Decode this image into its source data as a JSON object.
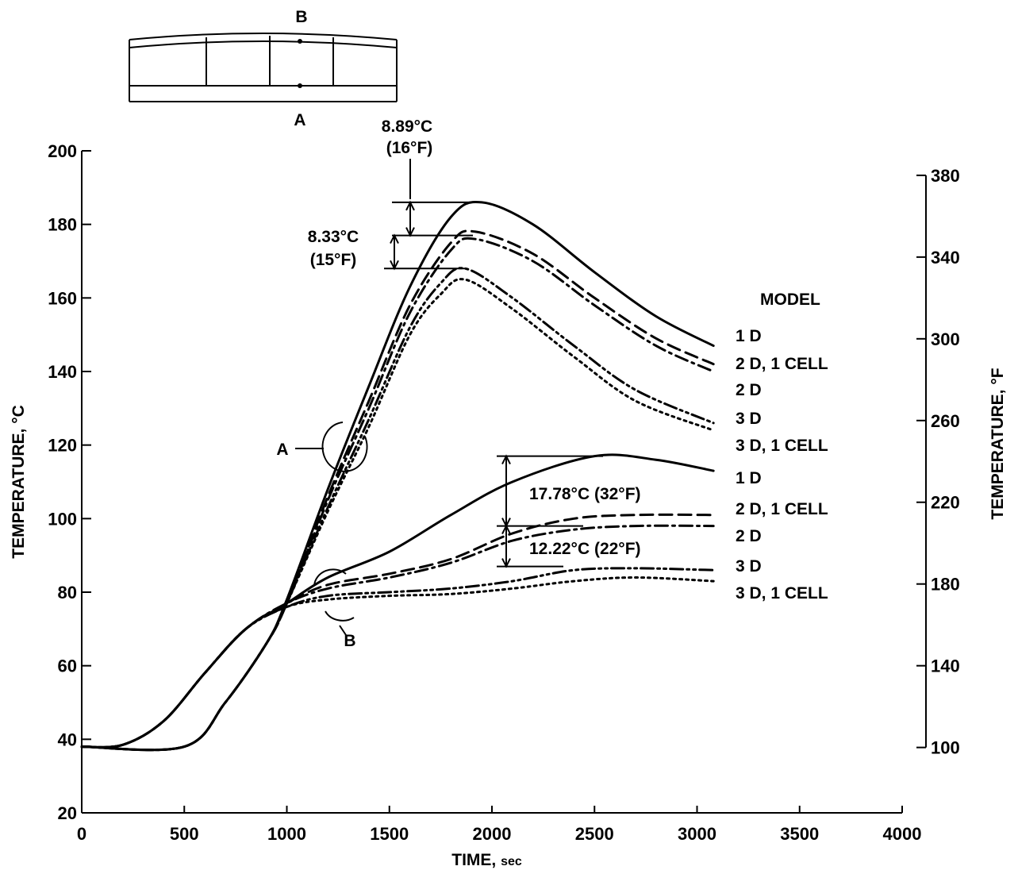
{
  "chart_data": {
    "type": "line",
    "x_axis": {
      "label_main": "TIME,",
      "label_unit": "sec",
      "range": [
        0,
        4000
      ],
      "ticks": [
        0,
        500,
        1000,
        1500,
        2000,
        2500,
        3000,
        3500,
        4000
      ]
    },
    "y_axis_left": {
      "label": "TEMPERATURE, °C",
      "range": [
        20,
        200
      ],
      "ticks": [
        20,
        40,
        60,
        80,
        100,
        120,
        140,
        160,
        180,
        200
      ]
    },
    "y_axis_right": {
      "label": "TEMPERATURE, °F",
      "ticks": [
        100,
        140,
        180,
        220,
        260,
        300,
        340,
        380
      ]
    },
    "legend_header": "MODEL",
    "location_A": {
      "label": "A",
      "series": [
        {
          "name": "1 D",
          "style": "solid",
          "x": [
            0,
            500,
            700,
            900,
            1000,
            1200,
            1400,
            1600,
            1800,
            1950,
            2200,
            2500,
            2800,
            3080
          ],
          "y": [
            38,
            38,
            50,
            66,
            78,
            108,
            136,
            163,
            182,
            186,
            180,
            167,
            155,
            147
          ]
        },
        {
          "name": "2 D, 1 CELL",
          "style": "dashed",
          "x": [
            0,
            500,
            700,
            900,
            1000,
            1200,
            1400,
            1600,
            1800,
            1920,
            2200,
            2500,
            2800,
            3080
          ],
          "y": [
            38,
            38,
            50,
            66,
            77,
            106,
            132,
            158,
            175,
            178,
            172,
            160,
            149,
            142
          ]
        },
        {
          "name": "2 D",
          "style": "dash-dot",
          "x": [
            0,
            500,
            700,
            900,
            1000,
            1200,
            1400,
            1600,
            1800,
            1920,
            2200,
            2500,
            2800,
            3080
          ],
          "y": [
            38,
            38,
            50,
            66,
            77,
            105,
            130,
            156,
            173,
            176,
            170,
            158,
            147,
            140
          ]
        },
        {
          "name": "3 D",
          "style": "dash-dot-dot",
          "x": [
            0,
            500,
            700,
            900,
            1000,
            1200,
            1400,
            1600,
            1750,
            1870,
            2100,
            2400,
            2700,
            3080
          ],
          "y": [
            38,
            38,
            50,
            66,
            77,
            103,
            127,
            152,
            164,
            168,
            160,
            147,
            135,
            126
          ]
        },
        {
          "name": "3 D, 1 CELL",
          "style": "dotted",
          "x": [
            0,
            500,
            700,
            900,
            1000,
            1200,
            1400,
            1600,
            1750,
            1870,
            2100,
            2400,
            2700,
            3080
          ],
          "y": [
            38,
            38,
            50,
            66,
            77,
            102,
            125,
            150,
            161,
            165,
            157,
            144,
            132,
            124
          ]
        }
      ]
    },
    "location_B": {
      "label": "B",
      "series": [
        {
          "name": "1 D",
          "style": "solid",
          "x": [
            0,
            200,
            400,
            600,
            800,
            1000,
            1200,
            1500,
            1800,
            2100,
            2500,
            2800,
            3080
          ],
          "y": [
            38,
            38.5,
            45,
            58,
            70,
            77,
            84,
            91,
            101,
            110,
            117,
            116,
            113
          ]
        },
        {
          "name": "2 D, 1 CELL",
          "style": "dashed",
          "x": [
            0,
            200,
            400,
            600,
            800,
            1000,
            1200,
            1500,
            1800,
            2100,
            2400,
            2700,
            3080
          ],
          "y": [
            38,
            38.5,
            45,
            58,
            70,
            77,
            82,
            85,
            89,
            96,
            100,
            101,
            101
          ]
        },
        {
          "name": "2 D",
          "style": "dash-dot",
          "x": [
            0,
            200,
            400,
            600,
            800,
            1000,
            1200,
            1500,
            1800,
            2100,
            2400,
            2700,
            3080
          ],
          "y": [
            38,
            38.5,
            45,
            58,
            70,
            77,
            81,
            84,
            88,
            94,
            97,
            98,
            98
          ]
        },
        {
          "name": "3 D",
          "style": "dash-dot-dot",
          "x": [
            0,
            200,
            400,
            600,
            800,
            1000,
            1200,
            1500,
            1800,
            2100,
            2400,
            2700,
            3080
          ],
          "y": [
            38,
            38.5,
            45,
            58,
            70,
            76,
            79,
            80,
            81,
            83,
            86,
            86.5,
            86
          ]
        },
        {
          "name": "3 D, 1 CELL",
          "style": "dotted",
          "x": [
            0,
            200,
            400,
            600,
            800,
            1000,
            1200,
            1500,
            1800,
            2100,
            2400,
            2700,
            3080
          ],
          "y": [
            38,
            38.5,
            45,
            58,
            70,
            76,
            78,
            79,
            79.5,
            81,
            83,
            84,
            83
          ]
        }
      ]
    },
    "annotations": {
      "delta_A_top_c": "8.89°C",
      "delta_A_top_f": "(16°F)",
      "delta_A_mid_c": "8.33°C",
      "delta_A_mid_f": "(15°F)",
      "delta_B_top": "17.78°C (32°F)",
      "delta_B_bottom": "12.22°C (22°F)"
    },
    "inset_labels": {
      "top": "B",
      "bottom": "A"
    }
  }
}
